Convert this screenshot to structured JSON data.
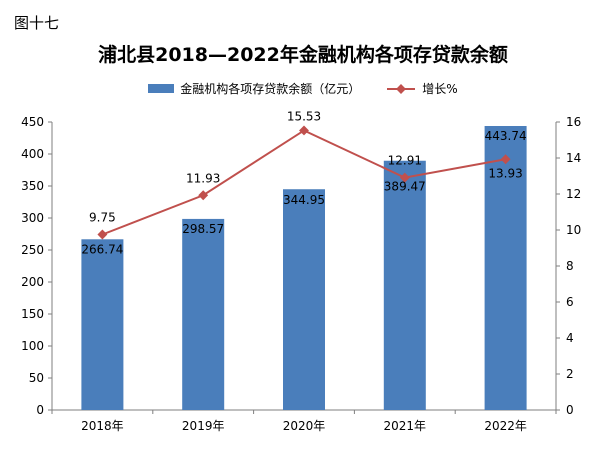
{
  "figure_label": "图十七",
  "chart_data": {
    "type": "bar",
    "title": "浦北县2018—2022年金融机构各项存贷款余额",
    "categories": [
      "2018年",
      "2019年",
      "2020年",
      "2021年",
      "2022年"
    ],
    "series": [
      {
        "name": "金融机构各项存贷款余额（亿元）",
        "type": "bar",
        "axis": "left",
        "values": [
          266.74,
          298.57,
          344.95,
          389.47,
          443.74
        ],
        "labels": [
          "266.74",
          "298.57",
          "344.95",
          "389.47",
          "443.74"
        ],
        "color": "#4a7ebb"
      },
      {
        "name": "增长%",
        "type": "line",
        "axis": "right",
        "values": [
          9.75,
          11.93,
          15.53,
          12.91,
          13.93
        ],
        "labels": [
          "9.75",
          "11.93",
          "15.53",
          "12.91",
          "13.93"
        ],
        "color": "#c0504d"
      }
    ],
    "y_left": {
      "ylim": [
        0,
        450
      ],
      "ticks": [
        "0",
        "50",
        "100",
        "150",
        "200",
        "250",
        "300",
        "350",
        "400",
        "450"
      ]
    },
    "y_right": {
      "ylim": [
        0,
        16
      ],
      "ticks": [
        "0",
        "2",
        "4",
        "6",
        "8",
        "10",
        "12",
        "14",
        "16"
      ]
    },
    "xlabel": "",
    "ylabel": "",
    "grid": false,
    "legend": "top"
  }
}
